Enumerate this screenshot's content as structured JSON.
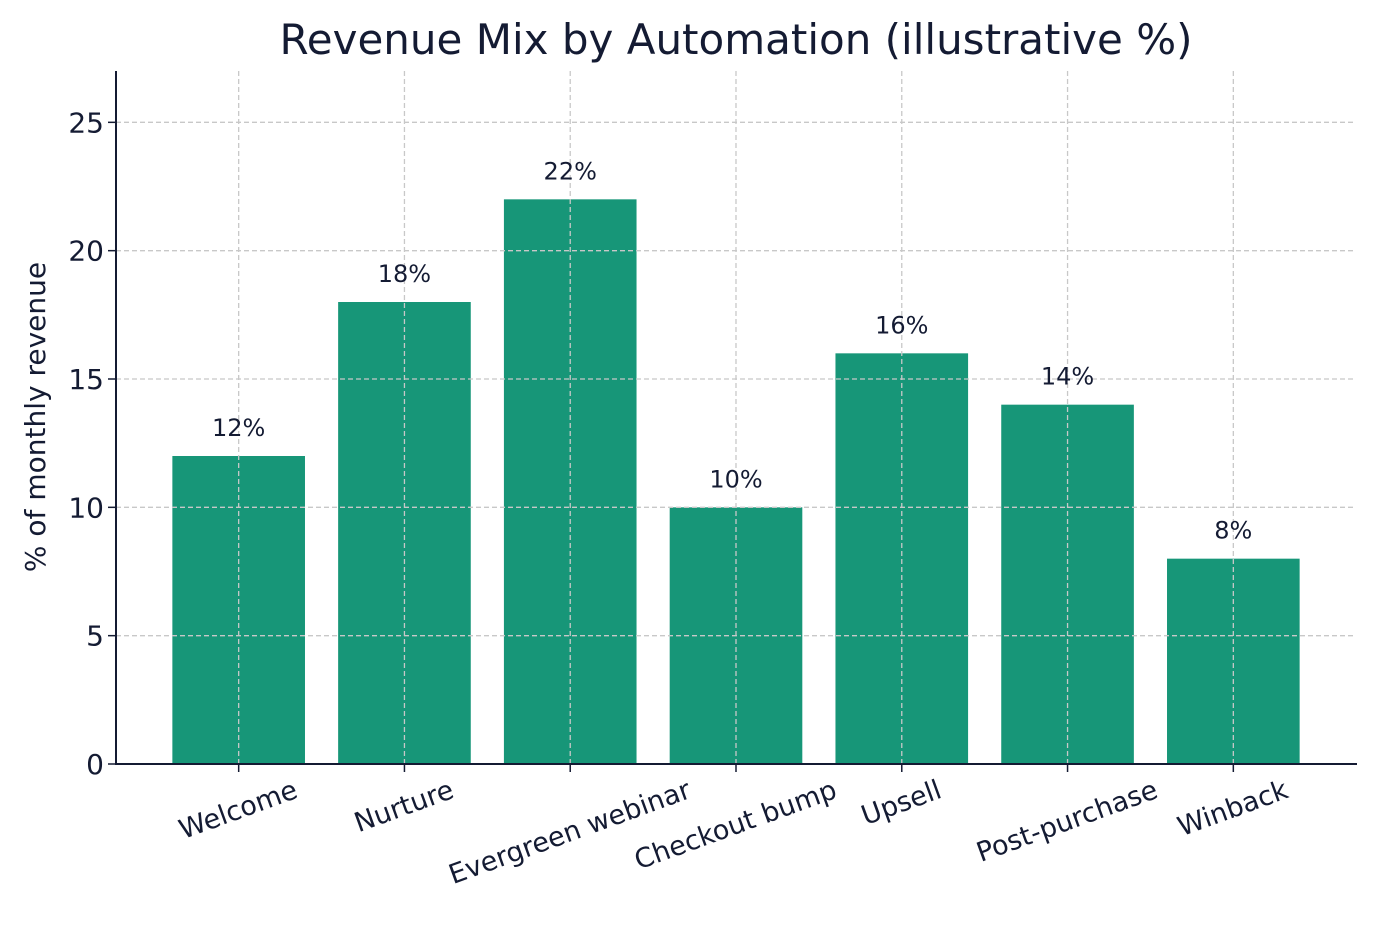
{
  "chart_data": {
    "type": "bar",
    "title": "Revenue Mix by Automation (illustrative %)",
    "xlabel": "",
    "ylabel": "% of monthly revenue",
    "categories": [
      "Welcome",
      "Nurture",
      "Evergreen webinar",
      "Checkout bump",
      "Upsell",
      "Post-purchase",
      "Winback"
    ],
    "values": [
      12,
      18,
      22,
      10,
      16,
      14,
      8
    ],
    "data_labels": [
      "12%",
      "18%",
      "22%",
      "10%",
      "16%",
      "14%",
      "8%"
    ],
    "ylim": [
      0,
      27
    ],
    "yticks": [
      0,
      5,
      10,
      15,
      20,
      25
    ],
    "grid": true,
    "bar_color": "#179678",
    "text_color": "#141b33",
    "grid_color": "#c8c8c8"
  }
}
